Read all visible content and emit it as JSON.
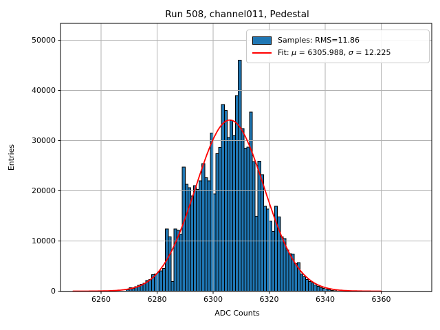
{
  "figure": {
    "title": "Run 508, channel011, Pedestal",
    "xlabel": "ADC Counts",
    "ylabel": "Entries"
  },
  "legend": {
    "samples_label": "Samples: RMS=11.86",
    "fit_label": "Fit: μ = 6305.988, σ = 12.225",
    "fit": {
      "prefix": "Fit: ",
      "mu_symbol": "μ",
      "mu_text": " = 6305.988, ",
      "sigma_symbol": "σ",
      "sigma_text": " = 12.225"
    }
  },
  "colors": {
    "bar_fill": "#1f77b4",
    "bar_edge": "#000000",
    "fit_line": "#ff0000",
    "grid": "#b0b0b0",
    "spine": "#000000",
    "background": "#ffffff"
  },
  "chart_data": {
    "type": "bar",
    "subtype": "histogram-with-gaussian-fit",
    "title": "Run 508, channel011, Pedestal",
    "xlabel": "ADC Counts",
    "ylabel": "Entries",
    "grid": true,
    "legend_position": "upper right",
    "xlim": [
      6245.5,
      6378
    ],
    "ylim": [
      0,
      53350
    ],
    "xticks": [
      6260,
      6280,
      6300,
      6320,
      6340,
      6360
    ],
    "yticks": [
      0,
      10000,
      20000,
      30000,
      40000,
      50000
    ],
    "bin_start": 6269,
    "bin_width": 1,
    "series": [
      {
        "name": "Samples: RMS=11.86",
        "rms": 11.86,
        "counts": [
          300,
          680,
          550,
          900,
          1150,
          1350,
          1550,
          2100,
          2350,
          3300,
          3400,
          3750,
          4050,
          4500,
          12400,
          10800,
          1900,
          12400,
          12100,
          11400,
          24700,
          21300,
          20600,
          19000,
          21000,
          20300,
          22000,
          25400,
          22600,
          22000,
          31500,
          19400,
          27400,
          28600,
          37200,
          36000,
          30600,
          34000,
          31000,
          39000,
          46000,
          32400,
          28500,
          28700,
          35700,
          25800,
          14900,
          25900,
          23200,
          16900,
          16400,
          14000,
          11900,
          16900,
          14800,
          10800,
          10500,
          8200,
          7500,
          7400,
          5500,
          5700,
          3450,
          2900,
          2300,
          1950,
          1620,
          1260,
          930,
          710,
          520,
          380,
          250,
          160,
          100
        ]
      },
      {
        "name": "Fit: μ = 6305.988, σ = 12.225",
        "mu": 6305.988,
        "sigma": 12.225,
        "amplitude": 34100,
        "curve_x_range": [
          6250,
          6360
        ]
      }
    ]
  }
}
